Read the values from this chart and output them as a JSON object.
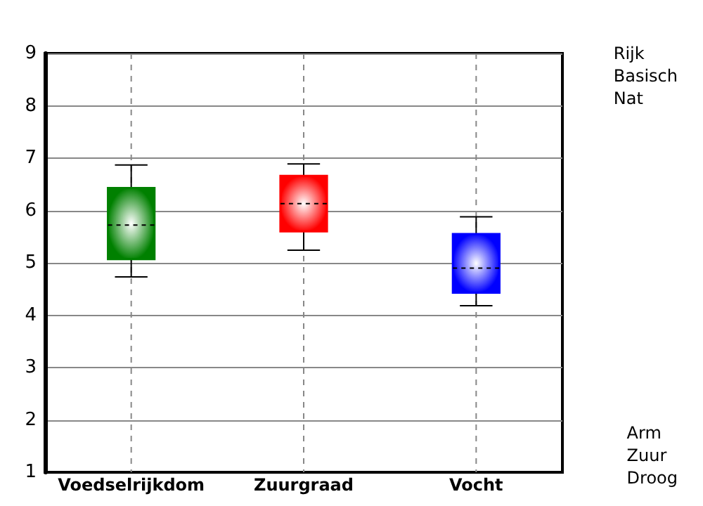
{
  "chart_data": {
    "type": "box",
    "categories": [
      "Voedselrijkdom",
      "Zuurgraad",
      "Vocht"
    ],
    "colors": [
      "#008000",
      "#ff0000",
      "#0000ff"
    ],
    "boxes": [
      {
        "low": 4.73,
        "q1": 5.07,
        "median": 5.72,
        "q3": 6.43,
        "high": 6.87
      },
      {
        "low": 5.24,
        "q1": 5.6,
        "median": 6.13,
        "q3": 6.66,
        "high": 6.89
      },
      {
        "low": 4.18,
        "q1": 4.43,
        "median": 4.9,
        "q3": 5.55,
        "high": 5.88
      }
    ],
    "ylim": [
      1,
      9
    ],
    "yticks": [
      1,
      2,
      3,
      4,
      5,
      6,
      7,
      8,
      9
    ],
    "grid": true,
    "annotations": [
      "Rijk\nBasisch\nNat",
      "Arm\nZuur\nDroog"
    ]
  }
}
